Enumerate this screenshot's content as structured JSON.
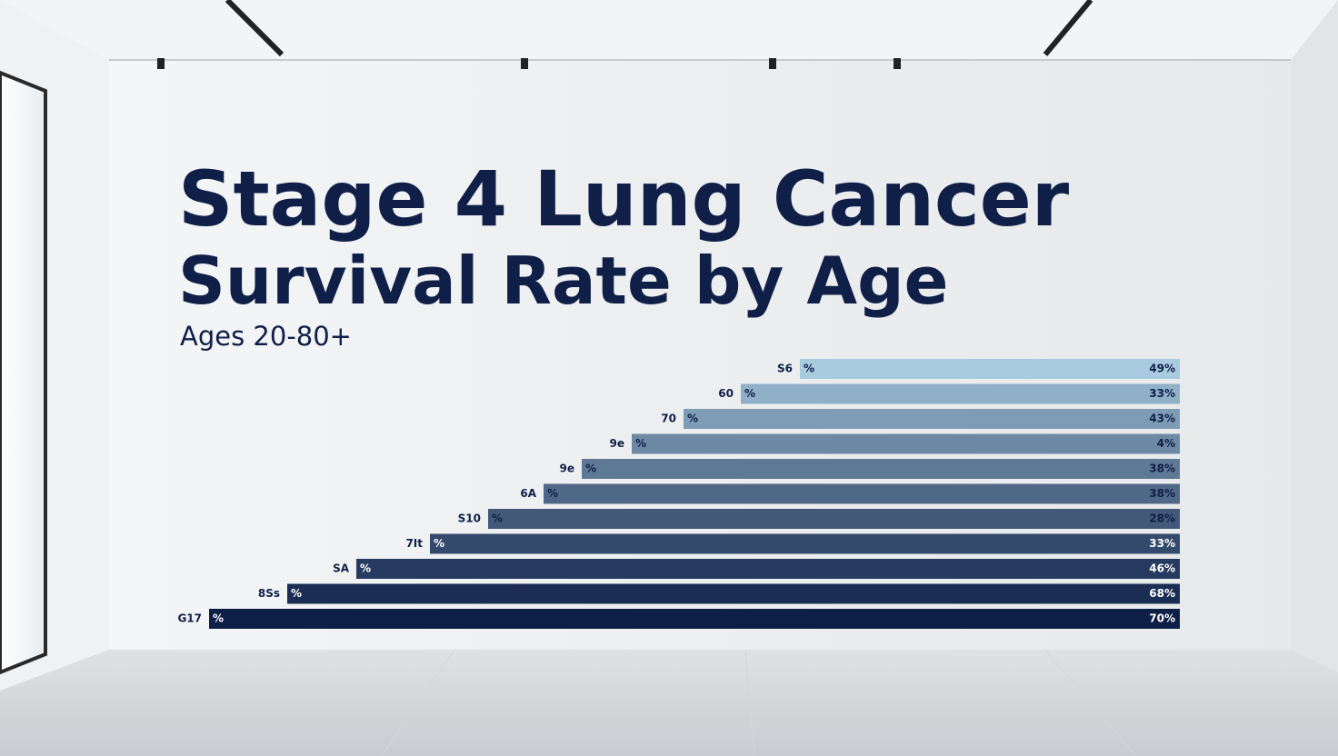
{
  "title_line1": "Stage 4 Lung Cancer",
  "title_line2": "Survival Rate by Age",
  "subtitle": "Ages 20-80+",
  "rows": [
    {
      "label": "S6",
      "unit": "%",
      "value_text": "49%"
    },
    {
      "label": "60",
      "unit": "%",
      "value_text": "33%"
    },
    {
      "label": "70",
      "unit": "%",
      "value_text": "43%"
    },
    {
      "label": "9e",
      "unit": "%",
      "value_text": "4%"
    },
    {
      "label": "9e",
      "unit": "%",
      "value_text": "38%"
    },
    {
      "label": "6A",
      "unit": "%",
      "value_text": "38%"
    },
    {
      "label": "S10",
      "unit": "%",
      "value_text": "28%"
    },
    {
      "label": "7It",
      "unit": "%",
      "value_text": "33%"
    },
    {
      "label": "SA",
      "unit": "%",
      "value_text": "46%"
    },
    {
      "label": "8Ss",
      "unit": "%",
      "value_text": "68%"
    },
    {
      "label": "G17",
      "unit": "%",
      "value_text": "70%"
    }
  ]
}
